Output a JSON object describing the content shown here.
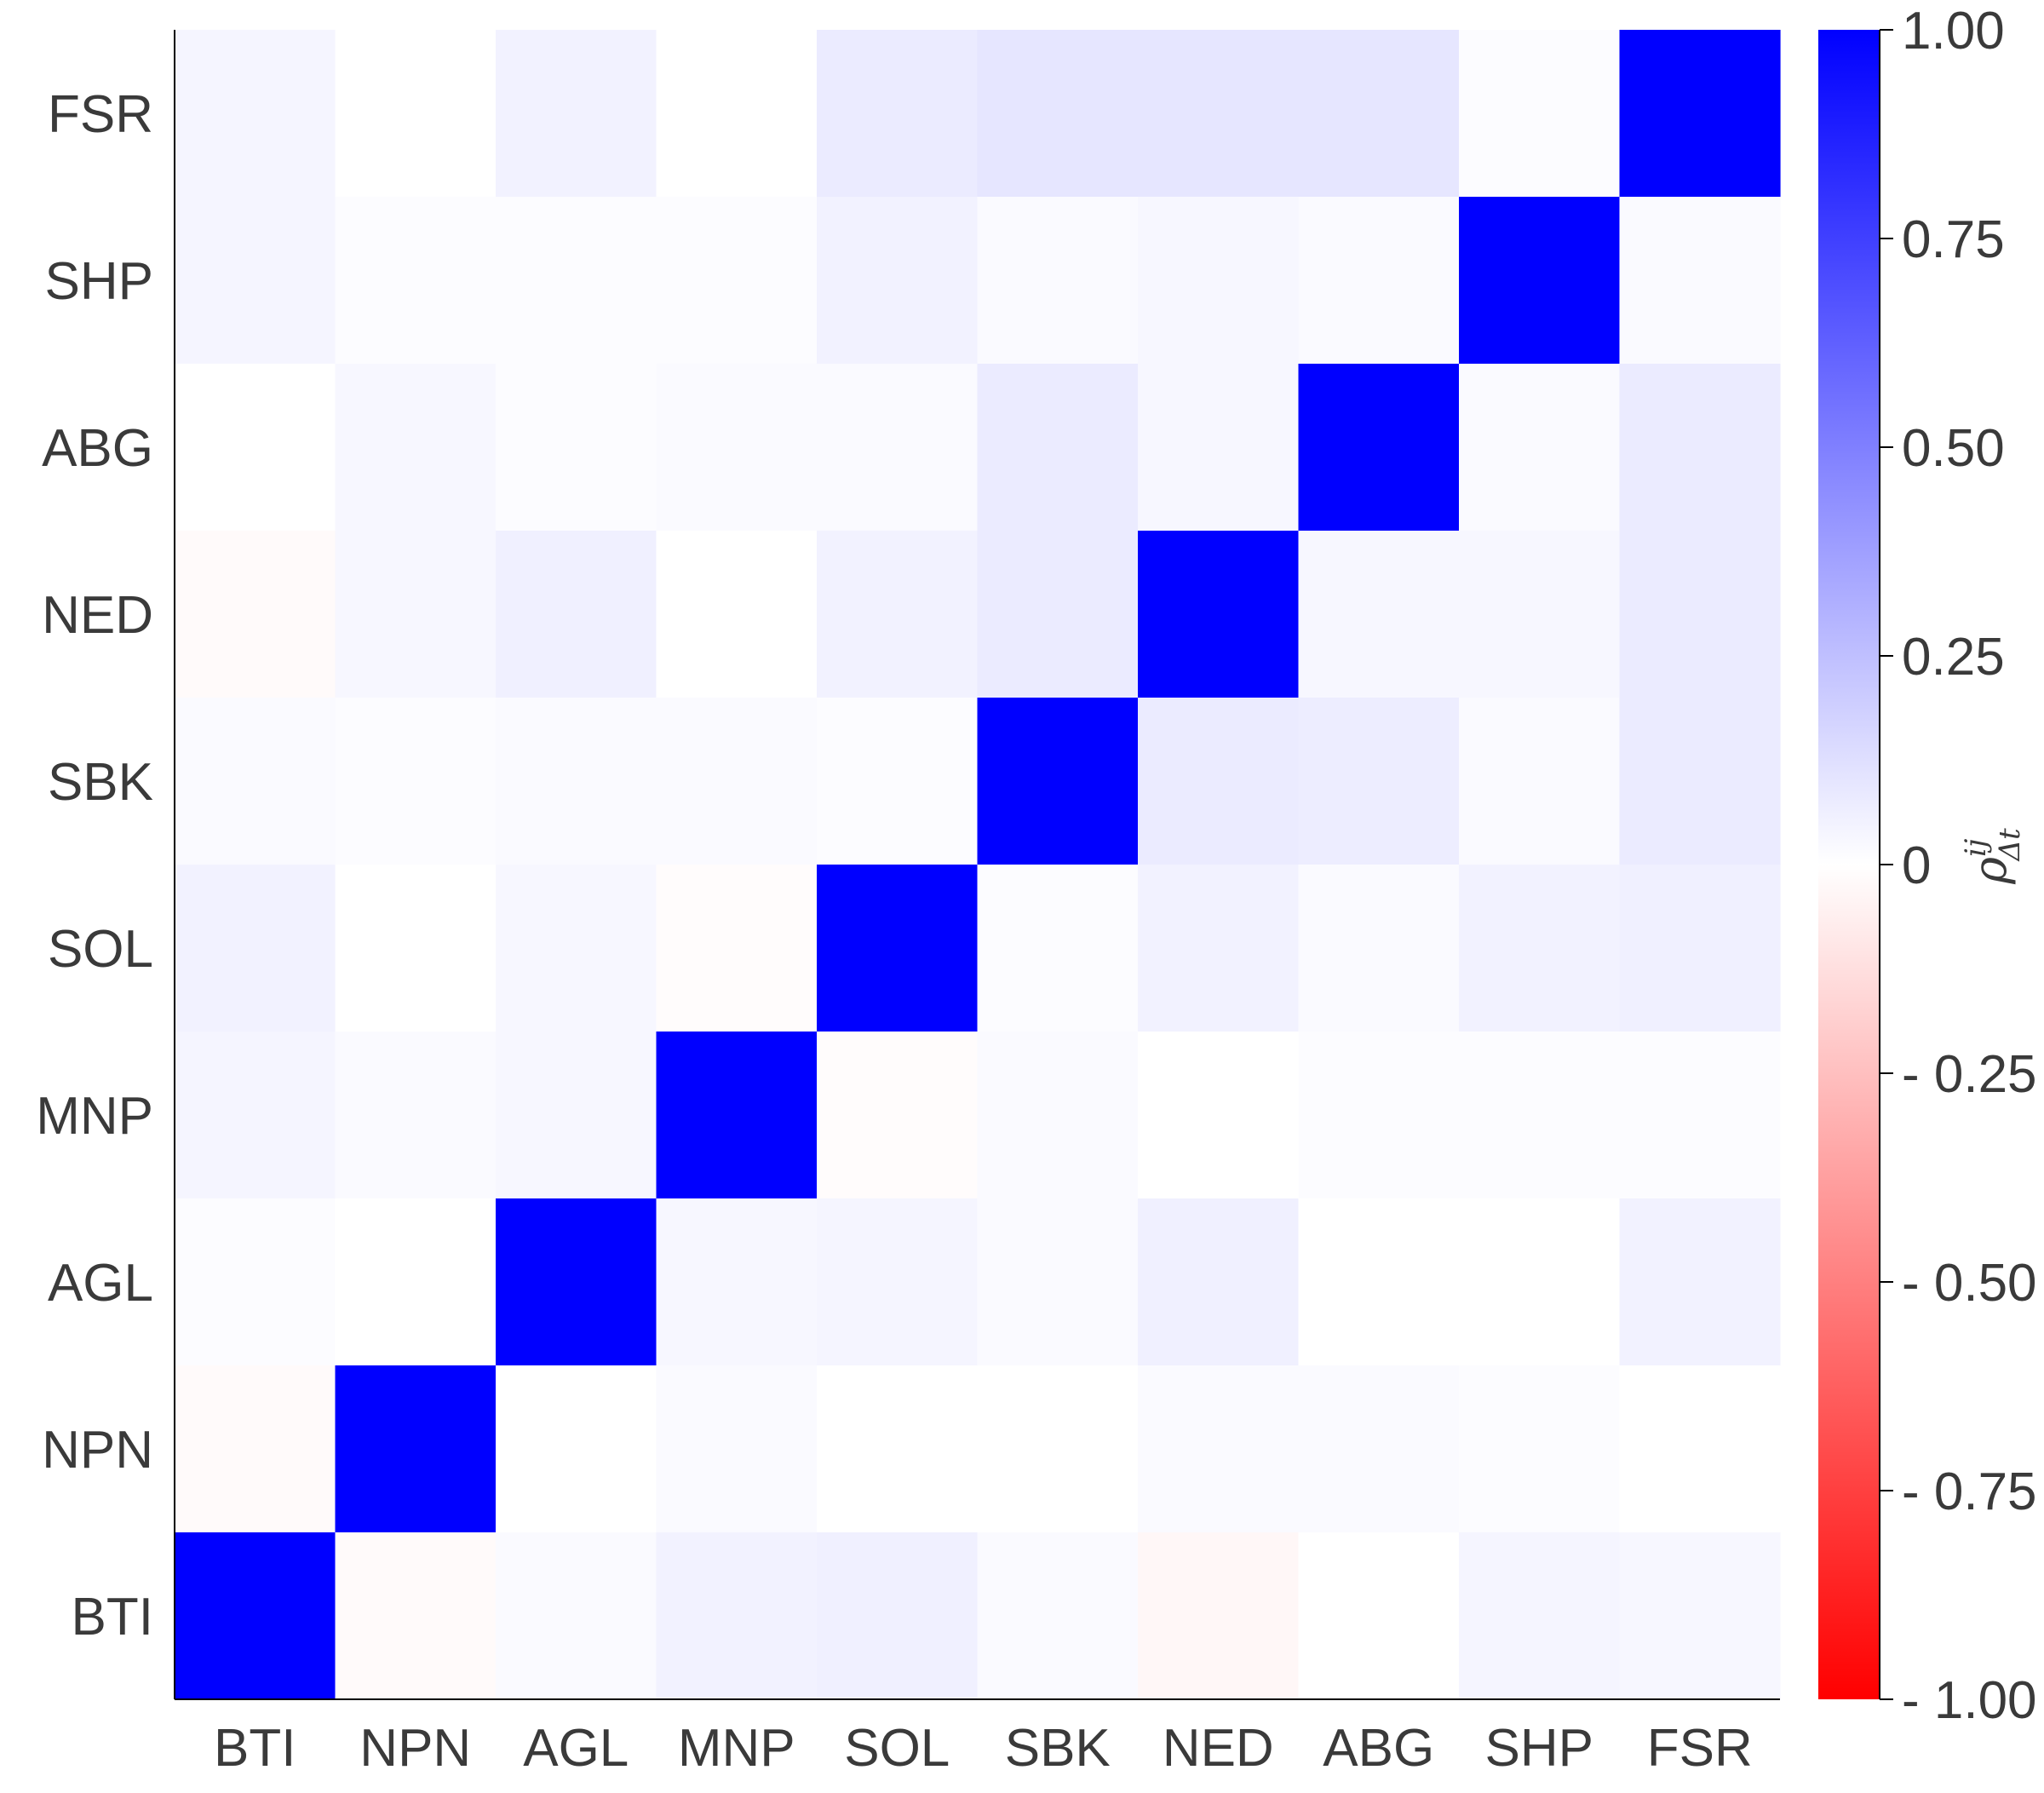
{
  "chart_data": {
    "type": "heatmap",
    "categories": [
      "BTI",
      "NPN",
      "AGL",
      "MNP",
      "SOL",
      "SBK",
      "NED",
      "ABG",
      "SHP",
      "FSR"
    ],
    "y_categories_top_to_bottom": [
      "FSR",
      "SHP",
      "ABG",
      "NED",
      "SBK",
      "SOL",
      "MNP",
      "AGL",
      "NPN",
      "BTI"
    ],
    "values": [
      [
        0.04,
        0.0,
        0.05,
        0.0,
        0.08,
        0.1,
        0.1,
        0.1,
        0.01,
        1.0
      ],
      [
        0.04,
        0.01,
        0.01,
        0.01,
        0.05,
        0.02,
        0.03,
        0.02,
        1.0,
        0.02
      ],
      [
        0.0,
        0.03,
        0.01,
        0.02,
        0.02,
        0.08,
        0.03,
        1.0,
        0.02,
        0.08
      ],
      [
        -0.02,
        0.03,
        0.06,
        0.0,
        0.05,
        0.08,
        1.0,
        0.03,
        0.03,
        0.08
      ],
      [
        0.02,
        0.01,
        0.02,
        0.02,
        0.01,
        1.0,
        0.08,
        0.07,
        0.02,
        0.08
      ],
      [
        0.05,
        0.0,
        0.03,
        -0.01,
        1.0,
        0.01,
        0.05,
        0.02,
        0.05,
        0.06
      ],
      [
        0.04,
        0.02,
        0.03,
        1.0,
        -0.01,
        0.02,
        0.0,
        0.01,
        0.01,
        0.01
      ],
      [
        0.01,
        0.0,
        1.0,
        0.03,
        0.04,
        0.02,
        0.06,
        0.0,
        0.0,
        0.05
      ],
      [
        -0.02,
        1.0,
        0.0,
        0.02,
        0.0,
        0.0,
        0.02,
        0.02,
        0.01,
        0.0
      ],
      [
        1.0,
        -0.02,
        0.02,
        0.05,
        0.06,
        0.02,
        -0.03,
        0.0,
        0.04,
        0.03
      ]
    ],
    "colorbar": {
      "vmin": -1.0,
      "vmax": 1.0,
      "ticks": [
        {
          "value": 1.0,
          "label": "1.00"
        },
        {
          "value": 0.75,
          "label": "0.75"
        },
        {
          "value": 0.5,
          "label": "0.50"
        },
        {
          "value": 0.25,
          "label": "0.25"
        },
        {
          "value": 0.0,
          "label": "0"
        },
        {
          "value": -0.25,
          "label": "- 0.25"
        },
        {
          "value": -0.5,
          "label": "- 0.50"
        },
        {
          "value": -0.75,
          "label": "- 0.75"
        },
        {
          "value": -1.0,
          "label": "- 1.00"
        }
      ],
      "colors": {
        "max": "#0000ff",
        "mid": "#ffffff",
        "min": "#ff0000"
      },
      "label": "ρ^{ij}_{Δt}",
      "label_base": "ρ",
      "label_sup": "ij",
      "label_sub": "Δt"
    },
    "title": "",
    "xlabel": "",
    "ylabel": "",
    "grid": false,
    "axes_color": "#000000"
  }
}
